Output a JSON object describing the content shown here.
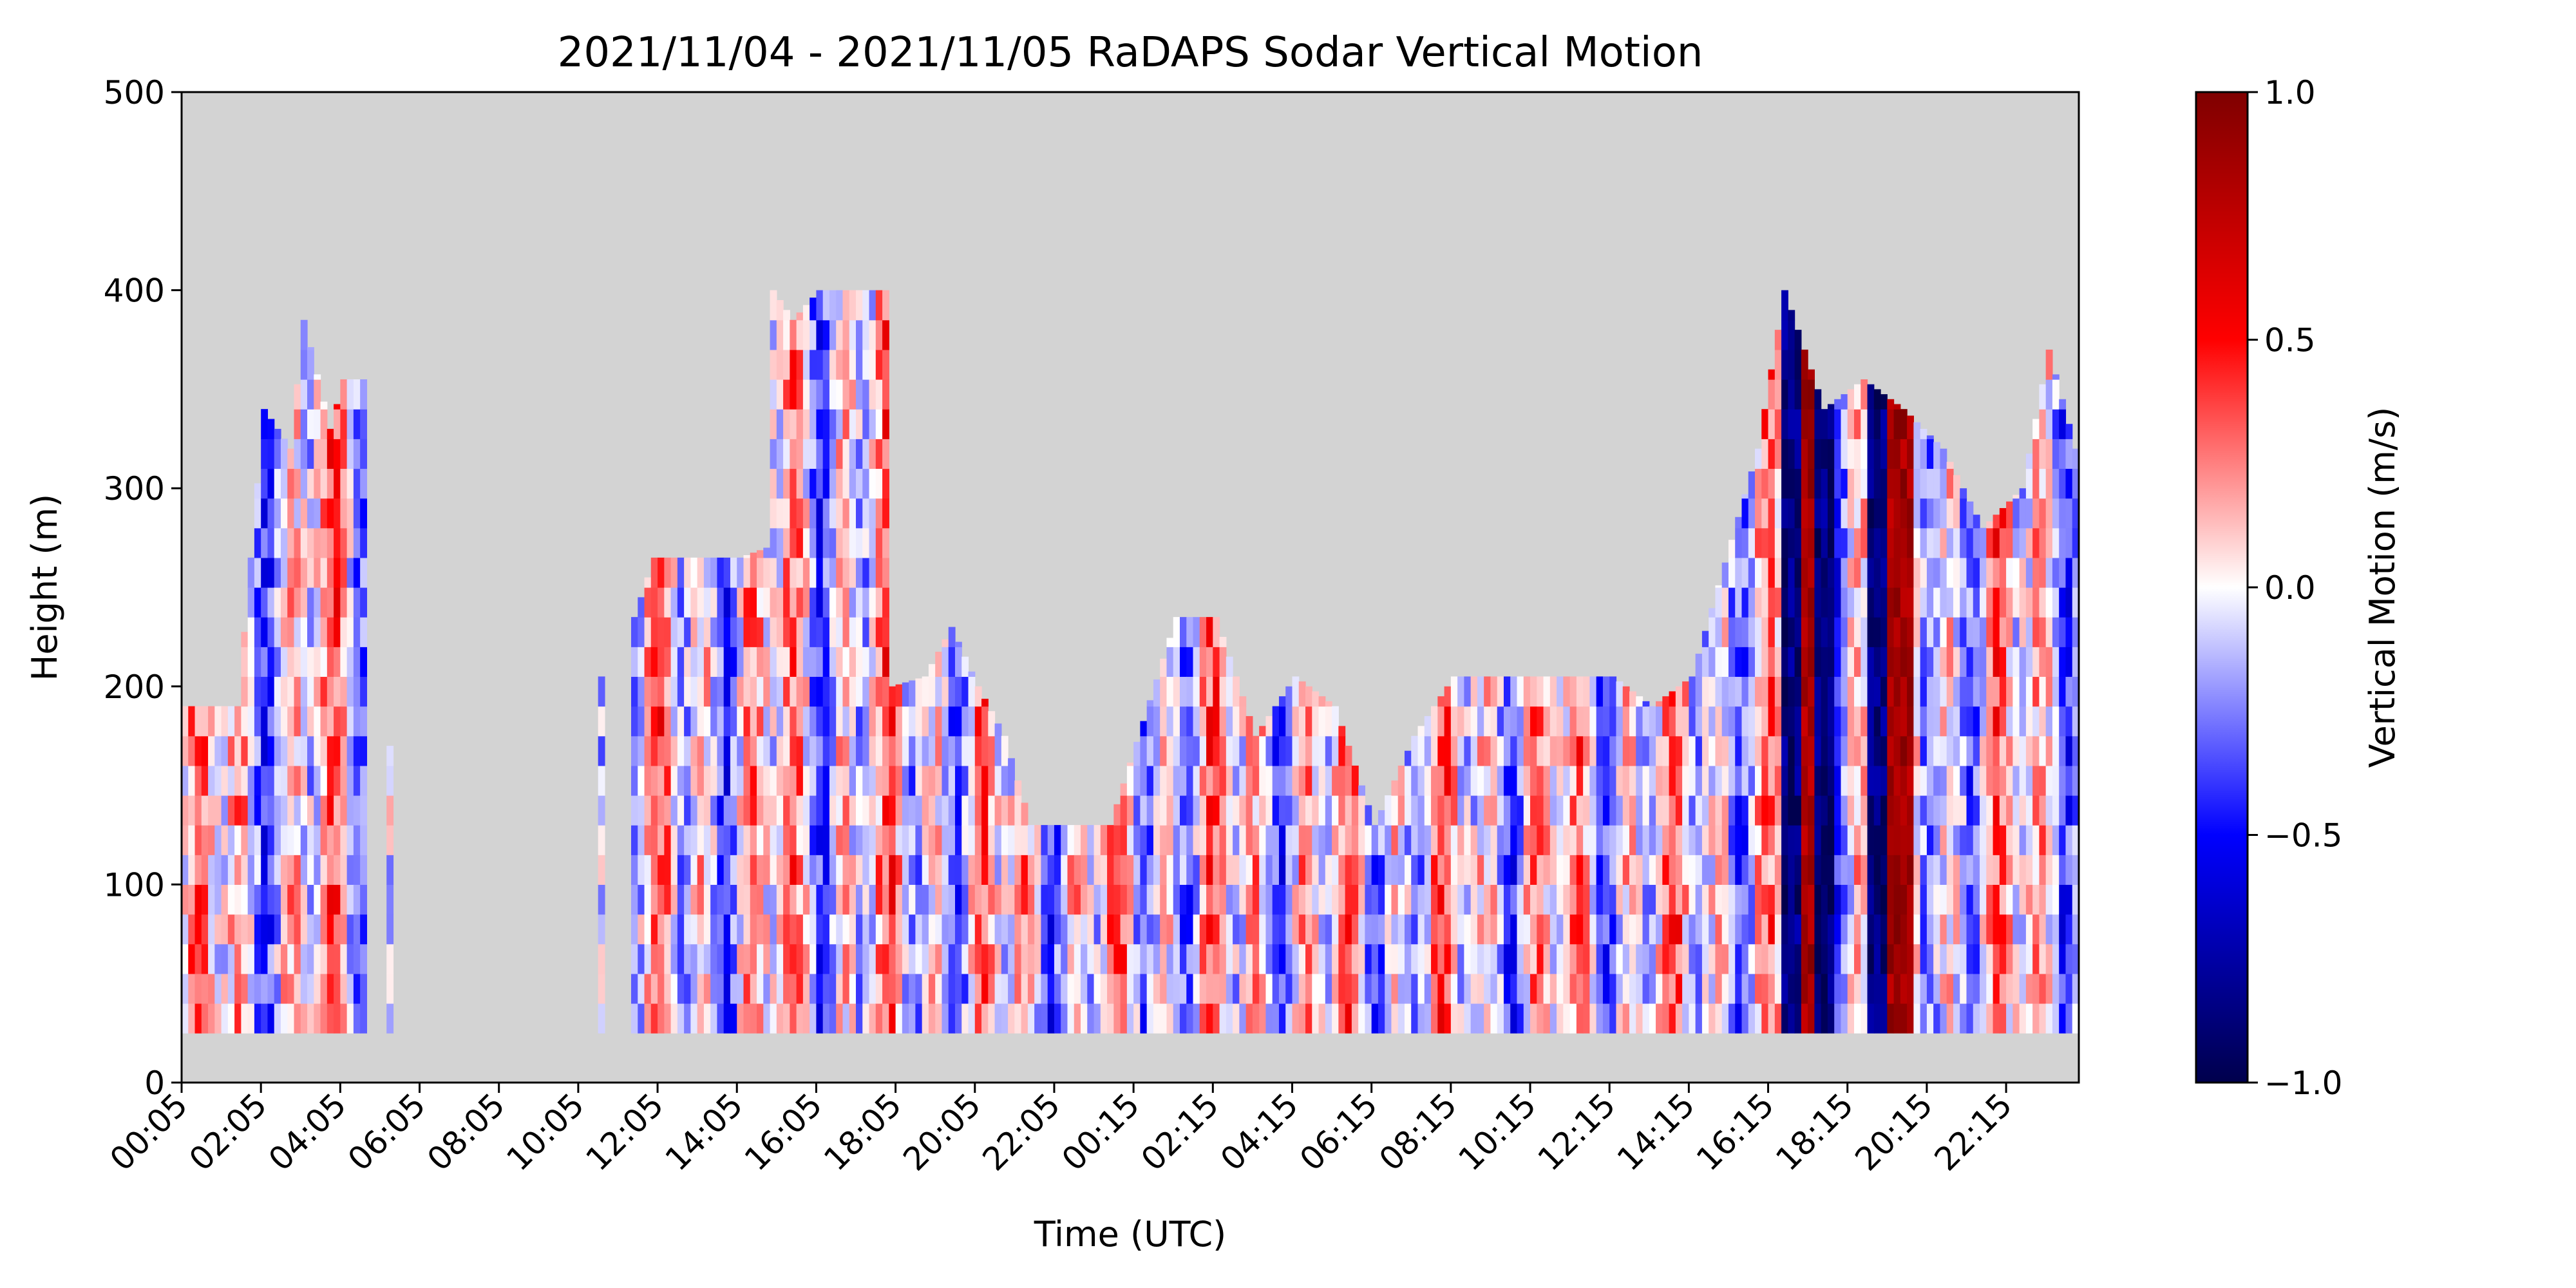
{
  "chart_data": {
    "type": "heatmap",
    "title": "2021/11/04 - 2021/11/05 RaDAPS Sodar Vertical Motion",
    "xlabel": "Time (UTC)",
    "ylabel": "Height (m)",
    "ylim": [
      0,
      500
    ],
    "y_ticks": [
      0,
      100,
      200,
      300,
      400,
      500
    ],
    "x_ticks": [
      "00:05",
      "02:05",
      "04:05",
      "06:05",
      "08:05",
      "10:05",
      "12:05",
      "14:05",
      "16:05",
      "18:05",
      "20:05",
      "22:05",
      "00:15",
      "02:15",
      "04:15",
      "06:15",
      "08:15",
      "10:15",
      "12:15",
      "14:15",
      "16:15",
      "18:15",
      "20:15",
      "22:15"
    ],
    "colorbar": {
      "label": "Vertical Motion (m/s)",
      "range": [
        -1.0,
        1.0
      ],
      "ticks": [
        "1.0",
        "0.5",
        "0.0",
        "−0.5",
        "−1.0"
      ],
      "colormap": "seismic",
      "colors": [
        "#00004c",
        "#0000ff",
        "#ffffff",
        "#ff0000",
        "#7f0000"
      ]
    },
    "missing_color": "#d3d3d3",
    "grid": false,
    "min_height": 25,
    "time_step_minutes": 10,
    "columns": 287,
    "echo_top_profile": [
      [
        0,
        190
      ],
      [
        8,
        190
      ],
      [
        12,
        340
      ],
      [
        16,
        320
      ],
      [
        18,
        385
      ],
      [
        22,
        330
      ],
      [
        24,
        355
      ],
      [
        27,
        355
      ],
      [
        28,
        0
      ],
      [
        31,
        170
      ],
      [
        32,
        0
      ],
      [
        63,
        205
      ],
      [
        64,
        0
      ],
      [
        68,
        235
      ],
      [
        71,
        265
      ],
      [
        76,
        265
      ],
      [
        80,
        265
      ],
      [
        84,
        265
      ],
      [
        88,
        270
      ],
      [
        89,
        400
      ],
      [
        92,
        385
      ],
      [
        96,
        400
      ],
      [
        106,
        400
      ],
      [
        107,
        200
      ],
      [
        112,
        205
      ],
      [
        116,
        230
      ],
      [
        120,
        200
      ],
      [
        124,
        175
      ],
      [
        128,
        130
      ],
      [
        134,
        130
      ],
      [
        140,
        130
      ],
      [
        150,
        235
      ],
      [
        156,
        235
      ],
      [
        162,
        175
      ],
      [
        168,
        205
      ],
      [
        174,
        190
      ],
      [
        180,
        130
      ],
      [
        186,
        175
      ],
      [
        192,
        205
      ],
      [
        198,
        205
      ],
      [
        204,
        205
      ],
      [
        210,
        205
      ],
      [
        216,
        205
      ],
      [
        222,
        190
      ],
      [
        228,
        205
      ],
      [
        238,
        320
      ],
      [
        242,
        400
      ],
      [
        248,
        340
      ],
      [
        254,
        355
      ],
      [
        260,
        340
      ],
      [
        266,
        320
      ],
      [
        272,
        280
      ],
      [
        278,
        300
      ],
      [
        282,
        370
      ],
      [
        286,
        320
      ]
    ],
    "strong_updraft_times": [
      "17:05",
      "18:55",
      "19:25"
    ],
    "strong_downdraft_times": [
      "16:35",
      "17:25",
      "18:45"
    ]
  }
}
